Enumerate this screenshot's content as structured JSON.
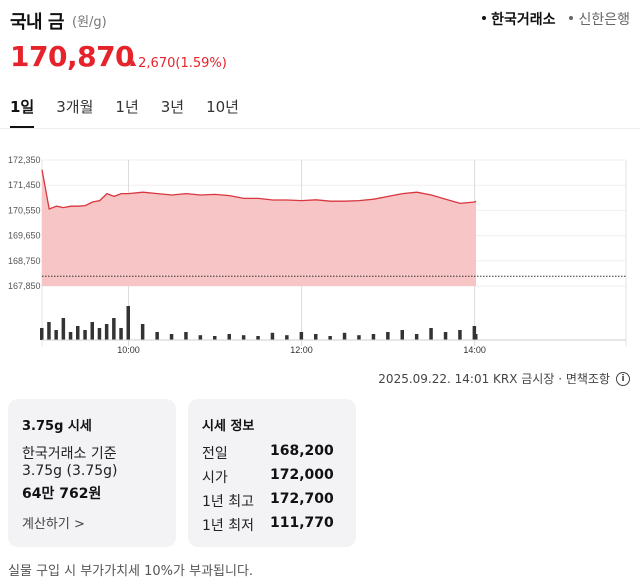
{
  "header": {
    "title": "국내 금",
    "unit": "(원/g)",
    "sources": [
      {
        "label": "한국거래소",
        "active": true
      },
      {
        "label": "신한은행",
        "active": false
      }
    ]
  },
  "quote": {
    "price": "170,870",
    "change": "2,670",
    "change_pct": "(1.59%)",
    "direction": "up"
  },
  "periods": [
    "1일",
    "3개월",
    "1년",
    "3년",
    "10년"
  ],
  "active_period": "1일",
  "source_note": "2025.09.22. 14:01 KRX 금시장 · 면책조항",
  "card_weight": {
    "title": "3.75g 시세",
    "basis": "한국거래소 기준",
    "weight": "3.75g (3.75g)",
    "amount": "64만 762원",
    "calc_label": "계산하기 >"
  },
  "card_info": {
    "title": "시세 정보",
    "rows": [
      {
        "label": "전일",
        "value": "168,200"
      },
      {
        "label": "시가",
        "value": "172,000"
      },
      {
        "label": "1년 최고",
        "value": "172,700"
      },
      {
        "label": "1년 최저",
        "value": "111,770"
      }
    ]
  },
  "bottom_note": "실물 구입 시 부가가치세 10%가 부과됩니다.",
  "colors": {
    "up": "#e6232b",
    "area_fill": "#f7c5c5",
    "line": "#d9363e",
    "volume": "#333333"
  },
  "chart_data": {
    "type": "area",
    "y_ticks": [
      "172,350",
      "171,450",
      "170,550",
      "169,650",
      "168,750",
      "167,850"
    ],
    "ylim": [
      167850,
      172350
    ],
    "x_ticks": [
      "10:00",
      "12:00",
      "14:00"
    ],
    "baseline": 168200,
    "x": [
      "09:00",
      "09:05",
      "09:10",
      "09:15",
      "09:20",
      "09:25",
      "09:30",
      "09:35",
      "09:40",
      "09:45",
      "09:50",
      "09:55",
      "10:00",
      "10:10",
      "10:20",
      "10:30",
      "10:40",
      "10:50",
      "11:00",
      "11:10",
      "11:20",
      "11:30",
      "11:40",
      "11:50",
      "12:00",
      "12:10",
      "12:20",
      "12:30",
      "12:40",
      "12:50",
      "13:00",
      "13:10",
      "13:20",
      "13:30",
      "13:40",
      "13:50",
      "14:00",
      "14:01"
    ],
    "values": [
      172000,
      170600,
      170700,
      170650,
      170700,
      170700,
      170720,
      170850,
      170900,
      171150,
      171050,
      171150,
      171150,
      171200,
      171150,
      171100,
      171150,
      171100,
      171120,
      171080,
      170980,
      170980,
      170920,
      170920,
      170900,
      170930,
      170880,
      170880,
      170900,
      170950,
      171050,
      171150,
      171200,
      171100,
      170950,
      170800,
      170850,
      170870
    ],
    "volume": [
      0.3,
      0.45,
      0.25,
      0.55,
      0.2,
      0.35,
      0.25,
      0.45,
      0.3,
      0.4,
      0.55,
      0.3,
      0.85,
      0.4,
      0.2,
      0.15,
      0.2,
      0.12,
      0.1,
      0.15,
      0.12,
      0.1,
      0.18,
      0.12,
      0.2,
      0.15,
      0.1,
      0.18,
      0.12,
      0.15,
      0.2,
      0.25,
      0.15,
      0.3,
      0.2,
      0.25,
      0.35,
      0.15
    ]
  }
}
